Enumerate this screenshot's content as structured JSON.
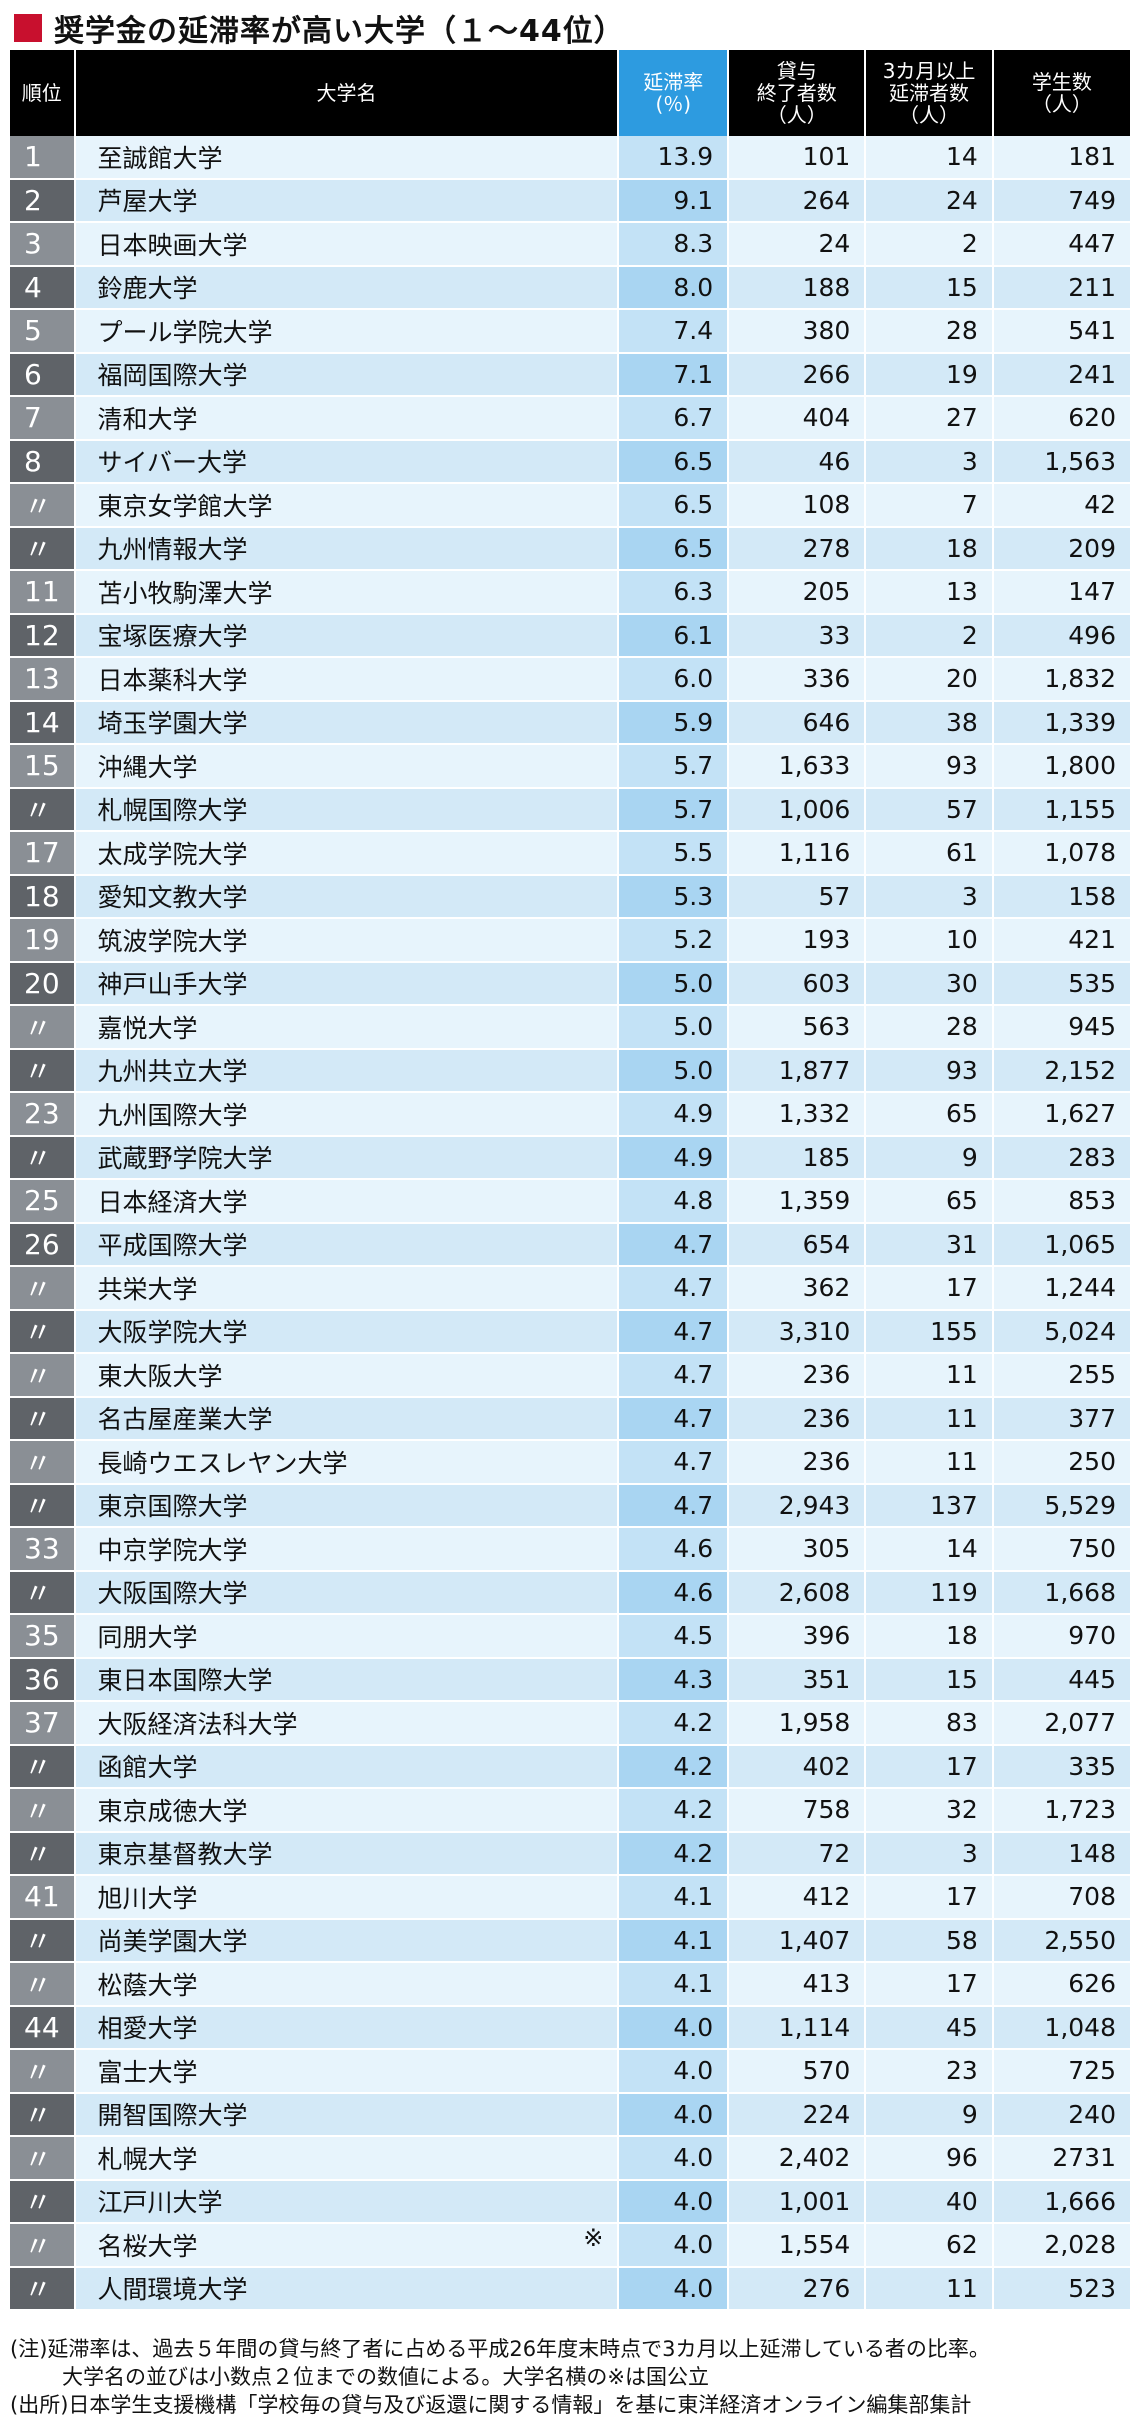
{
  "title": "奨学金の延滞率が高い大学（１～44位）",
  "headers": {
    "rank": "順位",
    "name": "大学名",
    "rate_line1": "延滞率",
    "rate_line2": "(％)",
    "finished_line1": "貸与",
    "finished_line2": "終了者数",
    "finished_line3": "（人）",
    "delinquent_line1": "3カ月以上",
    "delinquent_line2": "延滞者数",
    "delinquent_line3": "（人）",
    "students_line1": "学生数",
    "students_line2": "（人）"
  },
  "rows": [
    {
      "rank": "1",
      "name": "至誠館大学",
      "rate": "13.9",
      "finished": "101",
      "delinquent": "14",
      "students": "181",
      "mark": ""
    },
    {
      "rank": "2",
      "name": "芦屋大学",
      "rate": "9.1",
      "finished": "264",
      "delinquent": "24",
      "students": "749",
      "mark": ""
    },
    {
      "rank": "3",
      "name": "日本映画大学",
      "rate": "8.3",
      "finished": "24",
      "delinquent": "2",
      "students": "447",
      "mark": ""
    },
    {
      "rank": "4",
      "name": "鈴鹿大学",
      "rate": "8.0",
      "finished": "188",
      "delinquent": "15",
      "students": "211",
      "mark": ""
    },
    {
      "rank": "5",
      "name": "プール学院大学",
      "rate": "7.4",
      "finished": "380",
      "delinquent": "28",
      "students": "541",
      "mark": ""
    },
    {
      "rank": "6",
      "name": "福岡国際大学",
      "rate": "7.1",
      "finished": "266",
      "delinquent": "19",
      "students": "241",
      "mark": ""
    },
    {
      "rank": "7",
      "name": "清和大学",
      "rate": "6.7",
      "finished": "404",
      "delinquent": "27",
      "students": "620",
      "mark": ""
    },
    {
      "rank": "8",
      "name": "サイバー大学",
      "rate": "6.5",
      "finished": "46",
      "delinquent": "3",
      "students": "1,563",
      "mark": ""
    },
    {
      "rank": "〃",
      "name": "東京女学館大学",
      "rate": "6.5",
      "finished": "108",
      "delinquent": "7",
      "students": "42",
      "mark": ""
    },
    {
      "rank": "〃",
      "name": "九州情報大学",
      "rate": "6.5",
      "finished": "278",
      "delinquent": "18",
      "students": "209",
      "mark": ""
    },
    {
      "rank": "11",
      "name": "苫小牧駒澤大学",
      "rate": "6.3",
      "finished": "205",
      "delinquent": "13",
      "students": "147",
      "mark": ""
    },
    {
      "rank": "12",
      "name": "宝塚医療大学",
      "rate": "6.1",
      "finished": "33",
      "delinquent": "2",
      "students": "496",
      "mark": ""
    },
    {
      "rank": "13",
      "name": "日本薬科大学",
      "rate": "6.0",
      "finished": "336",
      "delinquent": "20",
      "students": "1,832",
      "mark": ""
    },
    {
      "rank": "14",
      "name": "埼玉学園大学",
      "rate": "5.9",
      "finished": "646",
      "delinquent": "38",
      "students": "1,339",
      "mark": ""
    },
    {
      "rank": "15",
      "name": "沖縄大学",
      "rate": "5.7",
      "finished": "1,633",
      "delinquent": "93",
      "students": "1,800",
      "mark": ""
    },
    {
      "rank": "〃",
      "name": "札幌国際大学",
      "rate": "5.7",
      "finished": "1,006",
      "delinquent": "57",
      "students": "1,155",
      "mark": ""
    },
    {
      "rank": "17",
      "name": "太成学院大学",
      "rate": "5.5",
      "finished": "1,116",
      "delinquent": "61",
      "students": "1,078",
      "mark": ""
    },
    {
      "rank": "18",
      "name": "愛知文教大学",
      "rate": "5.3",
      "finished": "57",
      "delinquent": "3",
      "students": "158",
      "mark": ""
    },
    {
      "rank": "19",
      "name": "筑波学院大学",
      "rate": "5.2",
      "finished": "193",
      "delinquent": "10",
      "students": "421",
      "mark": ""
    },
    {
      "rank": "20",
      "name": "神戸山手大学",
      "rate": "5.0",
      "finished": "603",
      "delinquent": "30",
      "students": "535",
      "mark": ""
    },
    {
      "rank": "〃",
      "name": "嘉悦大学",
      "rate": "5.0",
      "finished": "563",
      "delinquent": "28",
      "students": "945",
      "mark": ""
    },
    {
      "rank": "〃",
      "name": "九州共立大学",
      "rate": "5.0",
      "finished": "1,877",
      "delinquent": "93",
      "students": "2,152",
      "mark": ""
    },
    {
      "rank": "23",
      "name": "九州国際大学",
      "rate": "4.9",
      "finished": "1,332",
      "delinquent": "65",
      "students": "1,627",
      "mark": ""
    },
    {
      "rank": "〃",
      "name": "武蔵野学院大学",
      "rate": "4.9",
      "finished": "185",
      "delinquent": "9",
      "students": "283",
      "mark": ""
    },
    {
      "rank": "25",
      "name": "日本経済大学",
      "rate": "4.8",
      "finished": "1,359",
      "delinquent": "65",
      "students": "853",
      "mark": ""
    },
    {
      "rank": "26",
      "name": "平成国際大学",
      "rate": "4.7",
      "finished": "654",
      "delinquent": "31",
      "students": "1,065",
      "mark": ""
    },
    {
      "rank": "〃",
      "name": "共栄大学",
      "rate": "4.7",
      "finished": "362",
      "delinquent": "17",
      "students": "1,244",
      "mark": ""
    },
    {
      "rank": "〃",
      "name": "大阪学院大学",
      "rate": "4.7",
      "finished": "3,310",
      "delinquent": "155",
      "students": "5,024",
      "mark": ""
    },
    {
      "rank": "〃",
      "name": "東大阪大学",
      "rate": "4.7",
      "finished": "236",
      "delinquent": "11",
      "students": "255",
      "mark": ""
    },
    {
      "rank": "〃",
      "name": "名古屋産業大学",
      "rate": "4.7",
      "finished": "236",
      "delinquent": "11",
      "students": "377",
      "mark": ""
    },
    {
      "rank": "〃",
      "name": "長崎ウエスレヤン大学",
      "rate": "4.7",
      "finished": "236",
      "delinquent": "11",
      "students": "250",
      "mark": ""
    },
    {
      "rank": "〃",
      "name": "東京国際大学",
      "rate": "4.7",
      "finished": "2,943",
      "delinquent": "137",
      "students": "5,529",
      "mark": ""
    },
    {
      "rank": "33",
      "name": "中京学院大学",
      "rate": "4.6",
      "finished": "305",
      "delinquent": "14",
      "students": "750",
      "mark": ""
    },
    {
      "rank": "〃",
      "name": "大阪国際大学",
      "rate": "4.6",
      "finished": "2,608",
      "delinquent": "119",
      "students": "1,668",
      "mark": ""
    },
    {
      "rank": "35",
      "name": "同朋大学",
      "rate": "4.5",
      "finished": "396",
      "delinquent": "18",
      "students": "970",
      "mark": ""
    },
    {
      "rank": "36",
      "name": "東日本国際大学",
      "rate": "4.3",
      "finished": "351",
      "delinquent": "15",
      "students": "445",
      "mark": ""
    },
    {
      "rank": "37",
      "name": "大阪経済法科大学",
      "rate": "4.2",
      "finished": "1,958",
      "delinquent": "83",
      "students": "2,077",
      "mark": ""
    },
    {
      "rank": "〃",
      "name": "函館大学",
      "rate": "4.2",
      "finished": "402",
      "delinquent": "17",
      "students": "335",
      "mark": ""
    },
    {
      "rank": "〃",
      "name": "東京成徳大学",
      "rate": "4.2",
      "finished": "758",
      "delinquent": "32",
      "students": "1,723",
      "mark": ""
    },
    {
      "rank": "〃",
      "name": "東京基督教大学",
      "rate": "4.2",
      "finished": "72",
      "delinquent": "3",
      "students": "148",
      "mark": ""
    },
    {
      "rank": "41",
      "name": "旭川大学",
      "rate": "4.1",
      "finished": "412",
      "delinquent": "17",
      "students": "708",
      "mark": ""
    },
    {
      "rank": "〃",
      "name": "尚美学園大学",
      "rate": "4.1",
      "finished": "1,407",
      "delinquent": "58",
      "students": "2,550",
      "mark": ""
    },
    {
      "rank": "〃",
      "name": "松蔭大学",
      "rate": "4.1",
      "finished": "413",
      "delinquent": "17",
      "students": "626",
      "mark": ""
    },
    {
      "rank": "44",
      "name": "相愛大学",
      "rate": "4.0",
      "finished": "1,114",
      "delinquent": "45",
      "students": "1,048",
      "mark": ""
    },
    {
      "rank": "〃",
      "name": "富士大学",
      "rate": "4.0",
      "finished": "570",
      "delinquent": "23",
      "students": "725",
      "mark": ""
    },
    {
      "rank": "〃",
      "name": "開智国際大学",
      "rate": "4.0",
      "finished": "224",
      "delinquent": "9",
      "students": "240",
      "mark": ""
    },
    {
      "rank": "〃",
      "name": "札幌大学",
      "rate": "4.0",
      "finished": "2,402",
      "delinquent": "96",
      "students": "2731",
      "mark": ""
    },
    {
      "rank": "〃",
      "name": "江戸川大学",
      "rate": "4.0",
      "finished": "1,001",
      "delinquent": "40",
      "students": "1,666",
      "mark": ""
    },
    {
      "rank": "〃",
      "name": "名桜大学",
      "rate": "4.0",
      "finished": "1,554",
      "delinquent": "62",
      "students": "2,028",
      "mark": "※"
    },
    {
      "rank": "〃",
      "name": "人間環境大学",
      "rate": "4.0",
      "finished": "276",
      "delinquent": "11",
      "students": "523",
      "mark": ""
    }
  ],
  "notes": {
    "line1": "(注)延滞率は、過去５年間の貸与終了者に占める平成26年度末時点で3カ月以上延滞している者の比率。",
    "line2": "大学名の並びは小数点２位までの数値による。大学名横の※は国公立",
    "line3": "(出所)日本学生支援機構「学校毎の貸与及び返還に関する情報」を基に東洋経済オンライン編集部集計"
  },
  "colors": {
    "title_square": "#c8102e",
    "header_bg": "#000000",
    "header_highlight": "#2d9be0",
    "row_light": "#e7f4fc",
    "row_dark": "#d3e9f7",
    "rank_light": "#8a8f95",
    "rank_dark": "#5f6368"
  }
}
